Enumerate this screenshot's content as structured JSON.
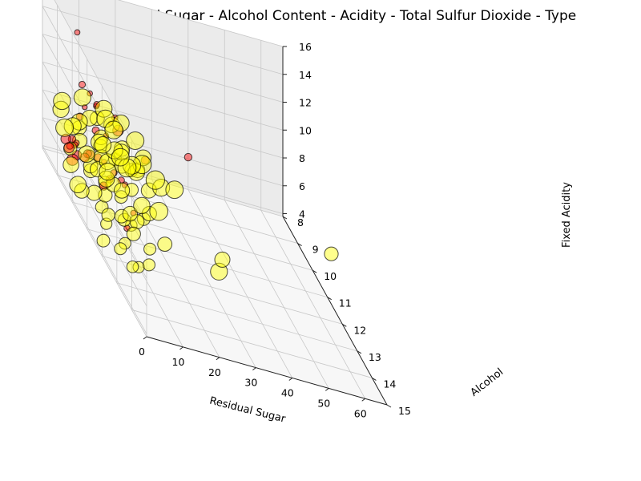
{
  "chart_data": {
    "type": "scatter",
    "projection": "3d",
    "title": "Wine Residual Sugar - Alcohol Content - Acidity - Total Sulfur Dioxide - Type",
    "xlabel": "Residual Sugar",
    "ylabel": "Alcohol",
    "zlabel": "Fixed Acidity",
    "size_encodes": "Total Sulfur Dioxide",
    "color_encodes": "Type",
    "xlim": [
      0,
      66
    ],
    "ylim": [
      8,
      15
    ],
    "zlim": [
      3.8,
      16
    ],
    "x_ticks": [
      "0",
      "10",
      "20",
      "30",
      "40",
      "50",
      "60"
    ],
    "y_ticks": [
      "8",
      "9",
      "10",
      "11",
      "12",
      "13",
      "14",
      "15"
    ],
    "z_ticks": [
      "4",
      "6",
      "8",
      "10",
      "12",
      "14",
      "16"
    ],
    "grid": true,
    "series": [
      {
        "color": "#ff0000",
        "points": [
          [
            2.0,
            9.5,
            7.5,
            40
          ],
          [
            1.9,
            9.8,
            7.8,
            25
          ],
          [
            2.6,
            10.2,
            11.2,
            18
          ],
          [
            1.8,
            9.4,
            6.8,
            30
          ],
          [
            2.2,
            10.5,
            8.4,
            45
          ],
          [
            2.5,
            11.0,
            12.8,
            20
          ],
          [
            1.7,
            9.9,
            7.1,
            60
          ],
          [
            2.1,
            10.0,
            10.1,
            35
          ],
          [
            3.0,
            11.4,
            9.6,
            22
          ],
          [
            2.4,
            12.0,
            13.5,
            15
          ],
          [
            1.6,
            10.8,
            8.9,
            50
          ],
          [
            2.3,
            9.6,
            7.3,
            28
          ],
          [
            5.5,
            10.3,
            11.8,
            25
          ],
          [
            2.8,
            12.6,
            10.6,
            32
          ],
          [
            1.9,
            11.8,
            12.2,
            18
          ],
          [
            2.0,
            9.3,
            6.5,
            70
          ],
          [
            3.4,
            10.9,
            9.0,
            40
          ],
          [
            2.2,
            13.0,
            11.0,
            24
          ],
          [
            1.8,
            10.4,
            7.9,
            55
          ],
          [
            6.5,
            11.2,
            8.7,
            30
          ],
          [
            2.6,
            9.7,
            15.6,
            20
          ],
          [
            2.7,
            12.2,
            14.3,
            25
          ],
          [
            4.0,
            10.6,
            10.4,
            36
          ],
          [
            2.1,
            11.6,
            8.2,
            48
          ],
          [
            1.5,
            9.2,
            6.9,
            66
          ],
          [
            2.9,
            13.4,
            9.8,
            22
          ],
          [
            2.3,
            10.1,
            12.6,
            30
          ],
          [
            8.5,
            11.0,
            11.5,
            80
          ],
          [
            3.6,
            12.8,
            7.6,
            26
          ],
          [
            2.0,
            10.7,
            13.1,
            19
          ],
          [
            1.7,
            9.6,
            6.2,
            90
          ],
          [
            13.5,
            11.6,
            10.9,
            45
          ],
          [
            2.5,
            11.9,
            9.3,
            38
          ],
          [
            15.5,
            14.0,
            15.9,
            40
          ]
        ]
      },
      {
        "color": "#ffff00",
        "points": [
          [
            1.5,
            9.5,
            6.8,
            120
          ],
          [
            6.2,
            10.2,
            7.0,
            160
          ],
          [
            12.5,
            9.0,
            6.9,
            190
          ],
          [
            2.0,
            11.5,
            6.5,
            110
          ],
          [
            8.0,
            10.8,
            7.2,
            150
          ],
          [
            14.0,
            9.4,
            7.4,
            200
          ],
          [
            1.2,
            12.0,
            6.2,
            90
          ],
          [
            5.0,
            11.0,
            6.6,
            130
          ],
          [
            10.5,
            9.8,
            7.1,
            175
          ],
          [
            3.0,
            10.5,
            7.6,
            140
          ],
          [
            16.5,
            9.2,
            6.7,
            210
          ],
          [
            1.8,
            12.8,
            6.0,
            100
          ],
          [
            7.0,
            11.6,
            6.4,
            125
          ],
          [
            12.0,
            10.4,
            6.3,
            165
          ],
          [
            2.5,
            9.9,
            8.2,
            145
          ],
          [
            9.0,
            9.6,
            8.0,
            180
          ],
          [
            4.5,
            12.4,
            7.5,
            115
          ],
          [
            18.0,
            9.6,
            7.0,
            220
          ],
          [
            1.4,
            10.9,
            7.9,
            135
          ],
          [
            11.0,
            11.2,
            6.1,
            150
          ],
          [
            6.8,
            9.3,
            6.4,
            190
          ],
          [
            2.2,
            13.0,
            6.8,
            95
          ],
          [
            13.5,
            10.0,
            8.4,
            170
          ],
          [
            5.5,
            10.6,
            8.6,
            155
          ],
          [
            15.0,
            11.0,
            6.6,
            185
          ],
          [
            1.6,
            11.8,
            8.8,
            105
          ],
          [
            8.8,
            12.2,
            7.3,
            140
          ],
          [
            3.8,
            9.1,
            7.8,
            200
          ],
          [
            10.0,
            10.9,
            8.9,
            160
          ],
          [
            20.0,
            9.8,
            7.6,
            230
          ],
          [
            1.3,
            9.6,
            5.8,
            170
          ],
          [
            4.2,
            11.4,
            5.9,
            120
          ],
          [
            7.5,
            10.1,
            9.2,
            150
          ],
          [
            12.8,
            9.1,
            9.0,
            210
          ],
          [
            2.8,
            12.6,
            9.4,
            110
          ],
          [
            9.5,
            11.8,
            5.7,
            130
          ],
          [
            16.0,
            10.4,
            7.9,
            190
          ],
          [
            1.1,
            10.2,
            9.6,
            140
          ],
          [
            6.0,
            9.7,
            9.7,
            175
          ],
          [
            14.5,
            11.6,
            8.8,
            160
          ],
          [
            3.5,
            13.2,
            5.6,
            95
          ],
          [
            11.8,
            9.5,
            5.9,
            205
          ],
          [
            2.4,
            8.9,
            7.2,
            215
          ],
          [
            8.2,
            12.8,
            8.6,
            115
          ],
          [
            5.2,
            9.2,
            8.4,
            185
          ],
          [
            17.0,
            10.6,
            9.4,
            175
          ],
          [
            1.9,
            14.0,
            7.0,
            90
          ],
          [
            13.0,
            12.0,
            7.8,
            145
          ],
          [
            4.8,
            10.3,
            5.4,
            160
          ],
          [
            10.8,
            10.7,
            9.8,
            165
          ],
          [
            19.5,
            11.2,
            8.6,
            200
          ],
          [
            1.0,
            9.0,
            8.6,
            180
          ],
          [
            7.2,
            13.4,
            6.4,
            100
          ],
          [
            22.0,
            10.2,
            7.4,
            240
          ],
          [
            3.2,
            11.1,
            10.2,
            125
          ],
          [
            15.5,
            9.0,
            8.2,
            220
          ],
          [
            9.8,
            9.9,
            6.0,
            180
          ],
          [
            2.6,
            10.0,
            4.8,
            150
          ],
          [
            6.5,
            12.4,
            9.8,
            120
          ],
          [
            26.0,
            13.5,
            7.5,
            200
          ],
          [
            31.0,
            12.5,
            6.8,
            160
          ],
          [
            65.0,
            11.5,
            7.8,
            130
          ],
          [
            1.2,
            11.8,
            4.6,
            110
          ],
          [
            4.0,
            9.4,
            4.2,
            190
          ],
          [
            11.5,
            9.3,
            10.0,
            195
          ],
          [
            18.5,
            9.7,
            9.0,
            215
          ],
          [
            8.5,
            11.9,
            10.4,
            120
          ],
          [
            14.8,
            12.6,
            6.9,
            140
          ],
          [
            2.1,
            8.8,
            8.9,
            205
          ],
          [
            20.5,
            10.8,
            6.2,
            225
          ],
          [
            5.8,
            13.8,
            8.2,
            100
          ],
          [
            12.2,
            11.4,
            9.7,
            150
          ],
          [
            3.6,
            12.0,
            11.0,
            115
          ],
          [
            17.5,
            9.4,
            6.4,
            230
          ],
          [
            9.2,
            10.4,
            10.8,
            170
          ],
          [
            1.5,
            13.6,
            9.2,
            95
          ],
          [
            24.0,
            11.0,
            8.4,
            210
          ],
          [
            6.9,
            9.0,
            9.9,
            200
          ],
          [
            13.8,
            9.9,
            10.3,
            185
          ],
          [
            4.4,
            10.6,
            11.3,
            140
          ]
        ]
      }
    ]
  }
}
